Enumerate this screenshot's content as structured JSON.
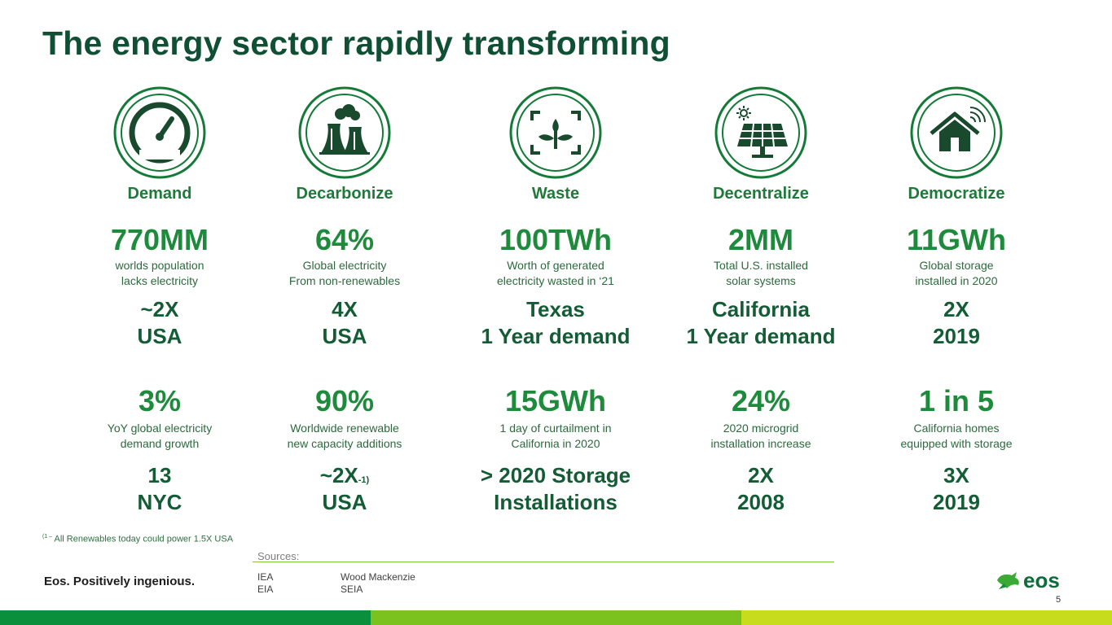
{
  "title": "The energy sector rapidly transforming",
  "columns": [
    {
      "icon": "speedometer-icon",
      "category": "Demand",
      "stat1": {
        "value": "770MM",
        "desc1": "worlds population",
        "desc2": "lacks electricity"
      },
      "equiv1": {
        "line1": "~2X",
        "line2": "USA"
      },
      "stat2": {
        "value": "3%",
        "desc1": "YoY global electricity",
        "desc2": "demand growth"
      },
      "equiv2": {
        "line1": "13",
        "line2": "NYC"
      }
    },
    {
      "icon": "power-plant-icon",
      "category": "Decarbonize",
      "stat1": {
        "value": "64%",
        "desc1": "Global electricity",
        "desc2": "From non-renewables"
      },
      "equiv1": {
        "line1": "4X",
        "line2": "USA"
      },
      "stat2": {
        "value": "90%",
        "desc1": "Worldwide renewable",
        "desc2": "new capacity additions"
      },
      "equiv2": {
        "line1": "~2X",
        "sup": "-1)",
        "line2": "USA"
      }
    },
    {
      "icon": "sprout-frame-icon",
      "category": "Waste",
      "stat1": {
        "value": "100TWh",
        "desc1": "Worth of generated",
        "desc2": "electricity wasted in ‘21"
      },
      "equiv1": {
        "line1": "Texas",
        "line2": "1 Year demand"
      },
      "stat2": {
        "value": "15GWh",
        "desc1": "1 day of curtailment in",
        "desc2": "California in 2020"
      },
      "equiv2": {
        "line1": "> 2020 Storage",
        "line2": "Installations"
      }
    },
    {
      "icon": "solar-panel-icon",
      "category": "Decentralize",
      "stat1": {
        "value": "2MM",
        "desc1": "Total U.S. installed",
        "desc2": "solar systems"
      },
      "equiv1": {
        "line1": "California",
        "line2": "1 Year demand"
      },
      "stat2": {
        "value": "24%",
        "desc1": "2020 microgrid",
        "desc2": "installation increase"
      },
      "equiv2": {
        "line1": "2X",
        "line2": "2008"
      }
    },
    {
      "icon": "smart-home-icon",
      "category": "Democratize",
      "stat1": {
        "value": "11GWh",
        "desc1": "Global storage",
        "desc2": "installed in 2020"
      },
      "equiv1": {
        "line1": "2X",
        "line2": "2019"
      },
      "stat2": {
        "value": "1 in 5",
        "desc1": "California homes",
        "desc2": "equipped with storage"
      },
      "equiv2": {
        "line1": "3X",
        "line2": "2019"
      }
    }
  ],
  "footnote": {
    "marker": "(1 –",
    "text": "All Renewables today could power 1.5X USA"
  },
  "sources": {
    "label": "Sources:",
    "col1": [
      "IEA",
      "EIA"
    ],
    "col2": [
      "Wood Mackenzie",
      "SEIA"
    ]
  },
  "tagline": "Eos. Positively ingenious.",
  "logo_text": "eos",
  "page_number": "5",
  "colors": {
    "title": "#0f4f34",
    "accent_green": "#1e8a3c",
    "bar_dark": "#0a8f3c",
    "bar_mid": "#7cc21e",
    "bar_light": "#c8dc1e"
  }
}
